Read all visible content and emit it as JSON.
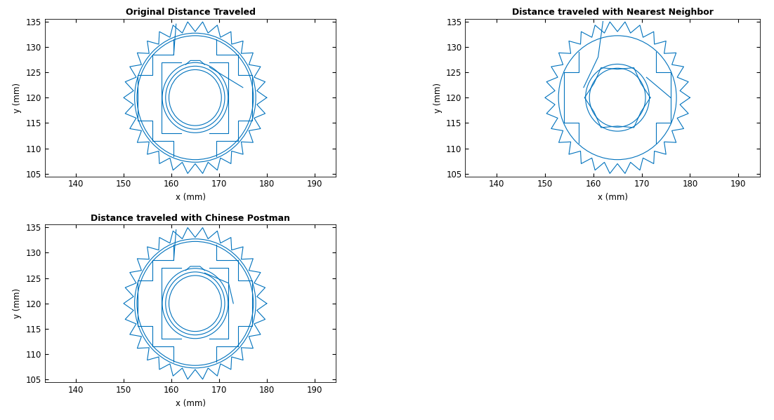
{
  "chart_data": [
    {
      "type": "line",
      "title": "Original Distance Traveled",
      "x_label": "x (mm)",
      "y_label": "y (mm)",
      "color": "#0072bd",
      "xlim": [
        133.5,
        194.5
      ],
      "ylim": [
        104.5,
        135.5
      ],
      "xticks": [
        140,
        150,
        160,
        170,
        180,
        190
      ],
      "yticks": [
        105,
        110,
        115,
        120,
        125,
        130,
        135
      ],
      "series": [
        {
          "x": [
            180,
            177.93,
            179.67,
            177.36,
            178.7,
            176.26,
            177.14,
            174.66,
            175.04,
            172.64,
            172.5,
            170.29,
            169.64,
            167.7,
            166.57,
            165,
            163.43,
            162.3,
            160.36,
            159.71,
            157.5,
            157.36,
            154.96,
            155.34,
            152.86,
            153.74,
            151.3,
            152.64,
            150.33,
            152.07,
            150,
            152.07,
            150.33,
            152.64,
            151.3,
            153.74,
            152.86,
            155.34,
            154.96,
            157.36,
            157.5,
            159.71,
            160.36,
            162.3,
            163.43,
            165,
            166.57,
            167.7,
            169.64,
            170.29,
            172.5,
            172.64,
            175.04,
            174.66,
            177.14,
            176.26,
            178.7,
            177.36,
            179.67,
            177.93,
            180
          ],
          "values": [
            120,
            121.36,
            123.12,
            124.02,
            126.1,
            126.5,
            128.82,
            128.7,
            131.15,
            130.52,
            132.99,
            131.88,
            134.27,
            132.72,
            134.92,
            133,
            134.92,
            132.72,
            134.27,
            131.88,
            132.99,
            130.52,
            131.15,
            128.7,
            128.82,
            126.5,
            126.1,
            124.02,
            123.12,
            121.36,
            120,
            118.64,
            116.88,
            115.98,
            113.9,
            113.5,
            111.18,
            111.3,
            108.85,
            109.48,
            107.01,
            108.12,
            105.73,
            107.28,
            105.08,
            107,
            105.08,
            107.28,
            105.73,
            108.12,
            107.01,
            109.48,
            108.85,
            111.3,
            111.18,
            113.5,
            113.9,
            115.98,
            116.88,
            118.64,
            120
          ]
        },
        {
          "x": [
            160.5,
            160.5,
            156,
            156,
            153,
            153,
            156,
            156,
            160.5,
            160.5
          ],
          "values": [
            131.5,
            128.5,
            128.5,
            124.5,
            124.5,
            115.5,
            115.5,
            111.5,
            111.5,
            108.5
          ]
        },
        {
          "x": [
            169.5,
            169.5,
            174,
            174,
            177,
            177,
            174,
            174,
            169.5,
            169.5
          ],
          "values": [
            131.5,
            128.5,
            128.5,
            124.5,
            124.5,
            115.5,
            115.5,
            111.5,
            111.5,
            108.5
          ]
        },
        {
          "x": [
            162,
            158,
            158,
            162
          ],
          "values": [
            127,
            127,
            113,
            113
          ]
        },
        {
          "x": [
            168,
            172,
            172,
            168
          ],
          "values": [
            127,
            127,
            113,
            113
          ]
        },
        {
          "x": [
            161,
            160.5
          ],
          "values": [
            134.5,
            128.5
          ]
        },
        {
          "x": [
            168,
            175
          ],
          "values": [
            126,
            122
          ]
        },
        {
          "x": [
            163,
            164,
            166,
            167
          ],
          "values": [
            126.5,
            127.3,
            127.3,
            126.5
          ]
        }
      ],
      "circles": [
        {
          "x": 165,
          "y": 120,
          "r": 12.7
        },
        {
          "x": 165,
          "y": 120,
          "r": 12.2
        },
        {
          "x": 165,
          "y": 120,
          "r": 6.9
        },
        {
          "x": 165,
          "y": 120,
          "r": 6.2
        },
        {
          "x": 165,
          "y": 120,
          "r": 5.5
        }
      ]
    },
    {
      "type": "line",
      "title": "Distance traveled with Nearest Neighbor",
      "x_label": "x (mm)",
      "y_label": "y (mm)",
      "color": "#0072bd",
      "xlim": [
        133.5,
        194.5
      ],
      "ylim": [
        104.5,
        135.5
      ],
      "xticks": [
        140,
        150,
        160,
        170,
        180,
        190
      ],
      "yticks": [
        105,
        110,
        115,
        120,
        125,
        130,
        135
      ],
      "series": [
        {
          "x": [
            180,
            177.93,
            179.67,
            177.36,
            178.7,
            176.26,
            177.14,
            174.66,
            175.04,
            172.64,
            172.5,
            170.29,
            169.64,
            167.7,
            166.57,
            165,
            163.43,
            162.3,
            160.36,
            159.71,
            157.5,
            157.36,
            154.96,
            155.34,
            152.86,
            153.74,
            151.3,
            152.64,
            150.33,
            152.07,
            150,
            152.07,
            150.33,
            152.64,
            151.3,
            153.74,
            152.86,
            155.34,
            154.96,
            157.36,
            157.5,
            159.71,
            160.36,
            162.3,
            163.43,
            165,
            166.57,
            167.7,
            169.64,
            170.29,
            172.5,
            172.64,
            175.04,
            174.66,
            177.14,
            176.26,
            178.7,
            177.36,
            179.67,
            177.93,
            180
          ],
          "values": [
            120,
            121.36,
            123.12,
            124.02,
            126.1,
            126.5,
            128.82,
            128.7,
            131.15,
            130.52,
            132.99,
            131.88,
            134.27,
            132.72,
            134.92,
            133,
            134.92,
            132.72,
            134.27,
            131.88,
            132.99,
            130.52,
            131.15,
            128.7,
            128.82,
            126.5,
            126.1,
            124.02,
            123.12,
            121.36,
            120,
            118.64,
            116.88,
            115.98,
            113.9,
            113.5,
            111.18,
            111.3,
            108.85,
            109.48,
            107.01,
            108.12,
            105.73,
            107.28,
            105.08,
            107,
            105.08,
            107.28,
            105.73,
            108.12,
            107.01,
            109.48,
            108.85,
            111.3,
            111.18,
            113.5,
            113.9,
            115.98,
            116.88,
            118.64,
            120
          ]
        },
        {
          "x": [
            157,
            157,
            154,
            154,
            157,
            157
          ],
          "values": [
            129,
            125,
            125,
            115,
            115,
            111
          ]
        },
        {
          "x": [
            173,
            173,
            176,
            176,
            173,
            173
          ],
          "values": [
            129,
            125,
            125,
            115,
            115,
            111
          ]
        },
        {
          "x": [
            171.8,
            169.85,
            168.4,
            165,
            161.6,
            160.15,
            158.2,
            160.15,
            161.6,
            165,
            168.4,
            169.85,
            171.8
          ],
          "values": [
            120,
            122.8,
            125.89,
            125.6,
            125.89,
            122.8,
            120,
            117.2,
            114.11,
            114.4,
            114.11,
            117.2,
            120
          ]
        },
        {
          "x": [
            162,
            161,
            158
          ],
          "values": [
            135,
            128,
            122
          ]
        },
        {
          "x": [
            171,
            176
          ],
          "values": [
            124,
            120
          ]
        }
      ],
      "circles": [
        {
          "x": 165,
          "y": 120,
          "r": 12.2
        },
        {
          "x": 165,
          "y": 120,
          "r": 6.6
        },
        {
          "x": 165,
          "y": 120,
          "r": 5.8
        }
      ]
    },
    {
      "type": "line",
      "title": "Distance traveled with Chinese Postman",
      "x_label": "x (mm)",
      "y_label": "y (mm)",
      "color": "#0072bd",
      "xlim": [
        133.5,
        194.5
      ],
      "ylim": [
        104.5,
        135.5
      ],
      "xticks": [
        140,
        150,
        160,
        170,
        180,
        190
      ],
      "yticks": [
        105,
        110,
        115,
        120,
        125,
        130,
        135
      ],
      "series": [
        {
          "x": [
            180,
            177.93,
            179.67,
            177.36,
            178.7,
            176.26,
            177.14,
            174.66,
            175.04,
            172.64,
            172.5,
            170.29,
            169.64,
            167.7,
            166.57,
            165,
            163.43,
            162.3,
            160.36,
            159.71,
            157.5,
            157.36,
            154.96,
            155.34,
            152.86,
            153.74,
            151.3,
            152.64,
            150.33,
            152.07,
            150,
            152.07,
            150.33,
            152.64,
            151.3,
            153.74,
            152.86,
            155.34,
            154.96,
            157.36,
            157.5,
            159.71,
            160.36,
            162.3,
            163.43,
            165,
            166.57,
            167.7,
            169.64,
            170.29,
            172.5,
            172.64,
            175.04,
            174.66,
            177.14,
            176.26,
            178.7,
            177.36,
            179.67,
            177.93,
            180
          ],
          "values": [
            120,
            121.36,
            123.12,
            124.02,
            126.1,
            126.5,
            128.82,
            128.7,
            131.15,
            130.52,
            132.99,
            131.88,
            134.27,
            132.72,
            134.92,
            133,
            134.92,
            132.72,
            134.27,
            131.88,
            132.99,
            130.52,
            131.15,
            128.7,
            128.82,
            126.5,
            126.1,
            124.02,
            123.12,
            121.36,
            120,
            118.64,
            116.88,
            115.98,
            113.9,
            113.5,
            111.18,
            111.3,
            108.85,
            109.48,
            107.01,
            108.12,
            105.73,
            107.28,
            105.08,
            107,
            105.08,
            107.28,
            105.73,
            108.12,
            107.01,
            109.48,
            108.85,
            111.3,
            111.18,
            113.5,
            113.9,
            115.98,
            116.88,
            118.64,
            120
          ]
        },
        {
          "x": [
            160.5,
            160.5,
            156,
            156,
            153,
            153,
            156,
            156,
            160.5,
            160.5
          ],
          "values": [
            131.5,
            128.5,
            128.5,
            124.5,
            124.5,
            115.5,
            115.5,
            111.5,
            111.5,
            108.5
          ]
        },
        {
          "x": [
            169.5,
            169.5,
            174,
            174,
            177,
            177,
            174,
            174,
            169.5,
            169.5
          ],
          "values": [
            131.5,
            128.5,
            128.5,
            124.5,
            124.5,
            115.5,
            115.5,
            111.5,
            111.5,
            108.5
          ]
        },
        {
          "x": [
            162,
            158,
            158,
            162
          ],
          "values": [
            127,
            127,
            113,
            113
          ]
        },
        {
          "x": [
            168,
            172,
            172,
            168
          ],
          "values": [
            127,
            127,
            113,
            113
          ]
        },
        {
          "x": [
            161,
            160.5
          ],
          "values": [
            134.5,
            128.5
          ]
        },
        {
          "x": [
            167,
            172,
            173
          ],
          "values": [
            126,
            124,
            120
          ]
        },
        {
          "x": [
            163,
            164,
            166,
            167
          ],
          "values": [
            126.5,
            127.3,
            127.3,
            126.5
          ]
        }
      ],
      "circles": [
        {
          "x": 165,
          "y": 120,
          "r": 12.7
        },
        {
          "x": 165,
          "y": 120,
          "r": 12.2
        },
        {
          "x": 165,
          "y": 120,
          "r": 6.9
        },
        {
          "x": 165,
          "y": 120,
          "r": 6.2
        },
        {
          "x": 165,
          "y": 120,
          "r": 5.5
        }
      ]
    }
  ]
}
